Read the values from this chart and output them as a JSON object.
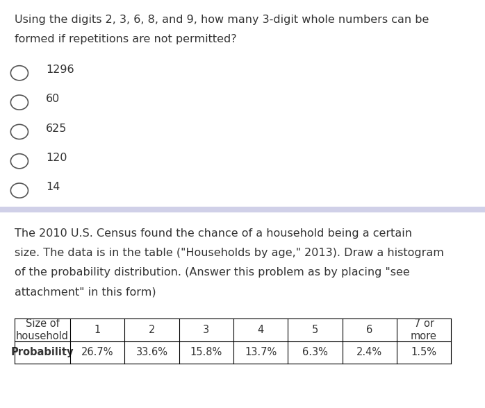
{
  "question1_text": [
    "Using the digits 2, 3, 6, 8, and 9, how many 3-digit whole numbers can be",
    "formed if repetitions are not permitted?"
  ],
  "options": [
    "1296",
    "60",
    "625",
    "120",
    "14"
  ],
  "divider_color": "#d0d0e8",
  "question2_text": [
    "The 2010 U.S. Census found the chance of a household being a certain",
    "size. The data is in the table (\"Households by age,\" 2013). Draw a histogram",
    "of the probability distribution. (Answer this problem as by placing \"see",
    "attachment\" in this form)"
  ],
  "table_headers": [
    "Size of\nhousehold",
    "1",
    "2",
    "3",
    "4",
    "5",
    "6",
    "7 or\nmore"
  ],
  "table_row_label": "Probability",
  "table_values": [
    "26.7%",
    "33.6%",
    "15.8%",
    "13.7%",
    "6.3%",
    "2.4%",
    "1.5%"
  ],
  "text_color": "#333333",
  "question_color": "#1a1a8c",
  "background_color": "#ffffff",
  "option_circle_color": "#555555",
  "table_border_color": "#000000",
  "q1_fontsize": 11.5,
  "q2_fontsize": 11.5,
  "option_fontsize": 11.5,
  "table_fontsize": 10.5
}
